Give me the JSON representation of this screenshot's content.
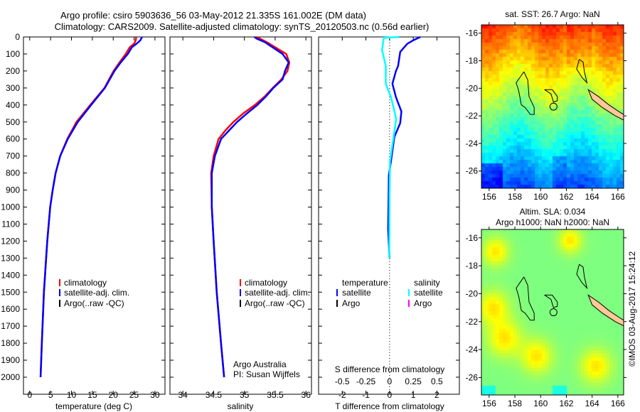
{
  "title": {
    "line1": "Argo profile: csiro 5903636_56 03-May-2012 21.335S 161.002E (DM data)",
    "line2": "Climatology: CARS2009. Satellite-adjusted climatology: synTS_20120503.nc (0.56d earlier)"
  },
  "colors": {
    "climatology": "#ff0000",
    "satellite": "#0000ff",
    "argo": "#000000",
    "sal_satellite": "#00ffff",
    "sal_argo": "#ff00ff",
    "land": "#ffc896"
  },
  "chart_data": [
    {
      "type": "line",
      "name": "temperature",
      "xlabel": "temperature (deg C)",
      "ylabel": "",
      "xlim": [
        -1.5,
        32.4
      ],
      "ylim": [
        2100,
        0
      ],
      "xticks": [
        0,
        5,
        10,
        15,
        20,
        25,
        30
      ],
      "yticks": [
        0,
        100,
        200,
        300,
        400,
        500,
        600,
        700,
        800,
        900,
        1000,
        1100,
        1200,
        1300,
        1400,
        1500,
        1600,
        1700,
        1800,
        1900,
        2000
      ],
      "legend": {
        "placement": "lower-center",
        "entries": [
          "climatology",
          "satellite-adj. clim.",
          "Argo(..raw -QC)"
        ]
      },
      "series": [
        {
          "name": "climatology",
          "depth": [
            0,
            20,
            40,
            60,
            100,
            150,
            200,
            300,
            400,
            500,
            600,
            700,
            800,
            900,
            1000,
            1200,
            1500,
            1800,
            2000
          ],
          "values": [
            25.5,
            25.4,
            25.0,
            24.0,
            23.0,
            21.5,
            20.1,
            17.9,
            14.5,
            11.2,
            9.0,
            7.3,
            6.2,
            5.5,
            4.9,
            4.2,
            3.4,
            2.9,
            2.6
          ]
        },
        {
          "name": "satellite-adj. clim.",
          "depth": [
            0,
            20,
            40,
            60,
            100,
            150,
            200,
            300,
            400,
            500,
            600,
            700,
            800,
            900,
            1000,
            1200,
            1500,
            1800,
            2000
          ],
          "values": [
            26.9,
            26.5,
            25.6,
            24.5,
            23.5,
            21.8,
            20.3,
            18.0,
            14.7,
            11.5,
            9.1,
            7.3,
            6.2,
            5.5,
            4.9,
            4.2,
            3.4,
            2.9,
            2.6
          ]
        }
      ]
    },
    {
      "type": "line",
      "name": "salinity",
      "xlabel": "salinity",
      "xlim": [
        33.79,
        36.09
      ],
      "ylim": [
        2100,
        0
      ],
      "xticks": [
        34,
        34.5,
        35,
        35.5,
        36
      ],
      "legend": {
        "placement": "lower-center",
        "entries": [
          "climatology",
          "satellite-adj. clim.",
          "Argo(..raw -QC)"
        ]
      },
      "annotations": [
        "Argo Australia",
        "PI: Susan Wijffels"
      ],
      "series": [
        {
          "name": "climatology",
          "depth": [
            0,
            30,
            100,
            150,
            200,
            250,
            300,
            350,
            400,
            450,
            500,
            550,
            600,
            700,
            800,
            1000,
            1200,
            1500,
            1800,
            2000
          ],
          "values": [
            35.2,
            35.36,
            35.68,
            35.73,
            35.7,
            35.6,
            35.46,
            35.33,
            35.17,
            34.98,
            34.82,
            34.69,
            34.58,
            34.5,
            34.46,
            34.47,
            34.5,
            34.55,
            34.62,
            34.67
          ]
        },
        {
          "name": "satellite-adj. clim.",
          "depth": [
            0,
            10,
            30,
            100,
            150,
            200,
            250,
            300,
            350,
            400,
            450,
            500,
            550,
            600,
            700,
            800,
            1000,
            1200,
            1500,
            1800,
            2000
          ],
          "values": [
            35.16,
            35.2,
            35.33,
            35.62,
            35.72,
            35.66,
            35.62,
            35.47,
            35.35,
            35.21,
            35.04,
            34.88,
            34.75,
            34.62,
            34.52,
            34.47,
            34.47,
            34.5,
            34.55,
            34.62,
            34.67
          ]
        }
      ]
    },
    {
      "type": "line",
      "name": "differences",
      "xlabel": "T difference from climatology",
      "xlabel_top": "S difference from climatology",
      "xlim": [
        -3,
        2.95
      ],
      "xticks": [
        -2,
        -1,
        0,
        1,
        2
      ],
      "s_xticks": [
        -0.5,
        -0.25,
        0,
        0.25,
        0.5
      ],
      "s_xtick_labels": [
        "-0.5",
        "-0.25",
        "0",
        "0.25",
        "0.5"
      ],
      "ylim": [
        2100,
        0
      ],
      "legend": {
        "placement": "lower-center",
        "temperature_title": "temperature",
        "salinity_title": "salinity",
        "entries": [
          "satellite",
          "Argo",
          "satellite",
          "Argo"
        ]
      },
      "series": [
        {
          "name": "T satellite",
          "depth": [
            0,
            20,
            40,
            88,
            171,
            200,
            275,
            354,
            438,
            506,
            589,
            730,
            814,
            1130,
            1300
          ],
          "values": [
            1.3,
            1.0,
            0.75,
            0.45,
            0.36,
            0.27,
            0.12,
            0.27,
            0.5,
            0.45,
            0.2,
            0.06,
            -0.03,
            -0.06,
            0.0
          ]
        },
        {
          "name": "S satellite",
          "depth": [
            0,
            5,
            75,
            171,
            275,
            354,
            480,
            560,
            730,
            923,
            1300
          ],
          "values": [
            0.1,
            -0.06,
            -0.08,
            -0.04,
            -0.04,
            0.015,
            0.07,
            0.05,
            0.005,
            0.0,
            -0.003
          ]
        }
      ]
    }
  ],
  "maps": [
    {
      "name": "sst",
      "title": "sat. SST: 26.7 Argo: NaN",
      "lon_ticks": [
        "156",
        "158",
        "160",
        "162",
        "164",
        "166"
      ],
      "lat_ticks": [
        "-16",
        "-18",
        "-20",
        "-22",
        "-24",
        "-26"
      ]
    },
    {
      "name": "sla",
      "title1": "Altim. SLA: 0.034",
      "title2": "Argo h1000: NaN h2000: NaN",
      "lon_ticks": [
        "156",
        "158",
        "160",
        "162",
        "164",
        "166"
      ],
      "lat_ticks": [
        "-16",
        "-18",
        "-20",
        "-22",
        "-24",
        "-26"
      ]
    }
  ],
  "credit": "©IMOS 03-Aug-2017 15:24:12"
}
